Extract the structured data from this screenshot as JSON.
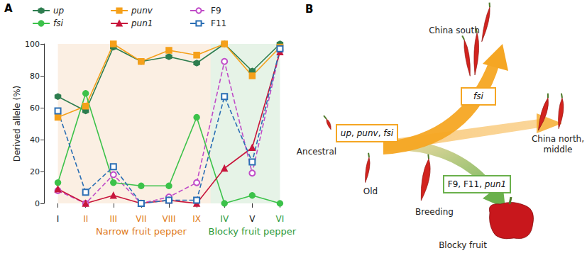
{
  "chart_data": {
    "type": "line",
    "panel_label": "A",
    "y_label": "Derived allele (%)",
    "categories": [
      "I",
      "II",
      "III",
      "VII",
      "VIII",
      "IX",
      "IV",
      "V",
      "VI"
    ],
    "ylim": [
      0,
      100
    ],
    "yticks": [
      0,
      20,
      40,
      60,
      80,
      100
    ],
    "grid": false,
    "legend": "top",
    "groups": [
      {
        "label": "Narrow fruit pepper",
        "color": "#e07b1a",
        "members": [
          "II",
          "III",
          "VII",
          "VIII",
          "IX"
        ]
      },
      {
        "label": "Blocky fruit pepper",
        "color": "#2e9a3a",
        "members": [
          "IV",
          "VI"
        ]
      }
    ],
    "series": [
      {
        "name": "up",
        "color": "#2e7d4f",
        "marker": "hexagon",
        "line_style": "solid",
        "values": [
          67,
          58,
          98,
          89,
          92,
          88,
          100,
          83,
          100
        ]
      },
      {
        "name": "punv",
        "color": "#f5a01a",
        "marker": "square",
        "line_style": "solid",
        "values": [
          54,
          61,
          100,
          89,
          96,
          93,
          100,
          80,
          98
        ]
      },
      {
        "name": "F9",
        "color": "#c04cc8",
        "marker": "open_circle",
        "line_style": "dashed",
        "values": [
          8,
          0,
          18,
          0,
          4,
          13,
          89,
          19,
          96
        ]
      },
      {
        "name": "fsi",
        "color": "#3cc24a",
        "marker": "circle",
        "line_style": "solid",
        "values": [
          13,
          69,
          13,
          11,
          11,
          54,
          0,
          5,
          0
        ]
      },
      {
        "name": "pun1",
        "color": "#c8163c",
        "marker": "triangle",
        "line_style": "solid",
        "values": [
          9,
          0,
          5,
          0,
          2,
          0,
          22,
          35,
          95
        ]
      },
      {
        "name": "F11",
        "color": "#2a6eb4",
        "marker": "open_square",
        "line_style": "dashed",
        "values": [
          58,
          7,
          23,
          0,
          2,
          2,
          67,
          26,
          97
        ]
      }
    ]
  },
  "diagram": {
    "panel_label": "B",
    "nodes": [
      {
        "label": "Ancestral"
      },
      {
        "label": "Old"
      },
      {
        "label": "Breeding"
      },
      {
        "label": "China south"
      },
      {
        "label": "China north, middle"
      },
      {
        "label": "Blocky fruit"
      }
    ],
    "boxes": [
      {
        "label": "up, punv, fsi",
        "color": "#f5a623"
      },
      {
        "label": "fsi",
        "color": "#f5a623"
      },
      {
        "label": "F9, F11, pun1",
        "color": "#6ab04c"
      }
    ]
  }
}
